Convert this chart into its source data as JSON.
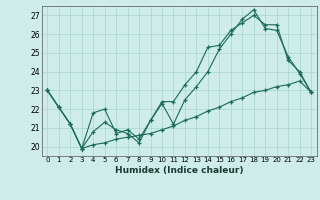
{
  "title": "",
  "xlabel": "Humidex (Indice chaleur)",
  "bg_color": "#ceecea",
  "grid_color": "#aed8d4",
  "line_color": "#1a6b5a",
  "xlim": [
    -0.5,
    23.5
  ],
  "ylim": [
    19.5,
    27.5
  ],
  "yticks": [
    20,
    21,
    22,
    23,
    24,
    25,
    26,
    27
  ],
  "xticks": [
    0,
    1,
    2,
    3,
    4,
    5,
    6,
    7,
    8,
    9,
    10,
    11,
    12,
    13,
    14,
    15,
    16,
    17,
    18,
    19,
    20,
    21,
    22,
    23
  ],
  "line1_y": [
    23.0,
    22.1,
    21.2,
    19.9,
    20.8,
    21.3,
    20.9,
    20.7,
    20.2,
    21.4,
    22.3,
    21.2,
    22.5,
    23.2,
    24.0,
    25.2,
    26.0,
    26.8,
    27.3,
    26.3,
    26.2,
    24.8,
    23.9,
    22.9
  ],
  "line2_y": [
    23.0,
    22.1,
    21.2,
    19.9,
    21.8,
    22.0,
    20.7,
    20.9,
    20.4,
    21.4,
    22.4,
    22.4,
    23.3,
    24.0,
    25.3,
    25.4,
    26.2,
    26.6,
    27.0,
    26.5,
    26.5,
    24.6,
    24.0,
    22.9
  ],
  "line3_y": [
    23.0,
    22.1,
    21.2,
    19.9,
    20.1,
    20.2,
    20.4,
    20.5,
    20.6,
    20.7,
    20.9,
    21.1,
    21.4,
    21.6,
    21.9,
    22.1,
    22.4,
    22.6,
    22.9,
    23.0,
    23.2,
    23.3,
    23.5,
    22.9
  ]
}
